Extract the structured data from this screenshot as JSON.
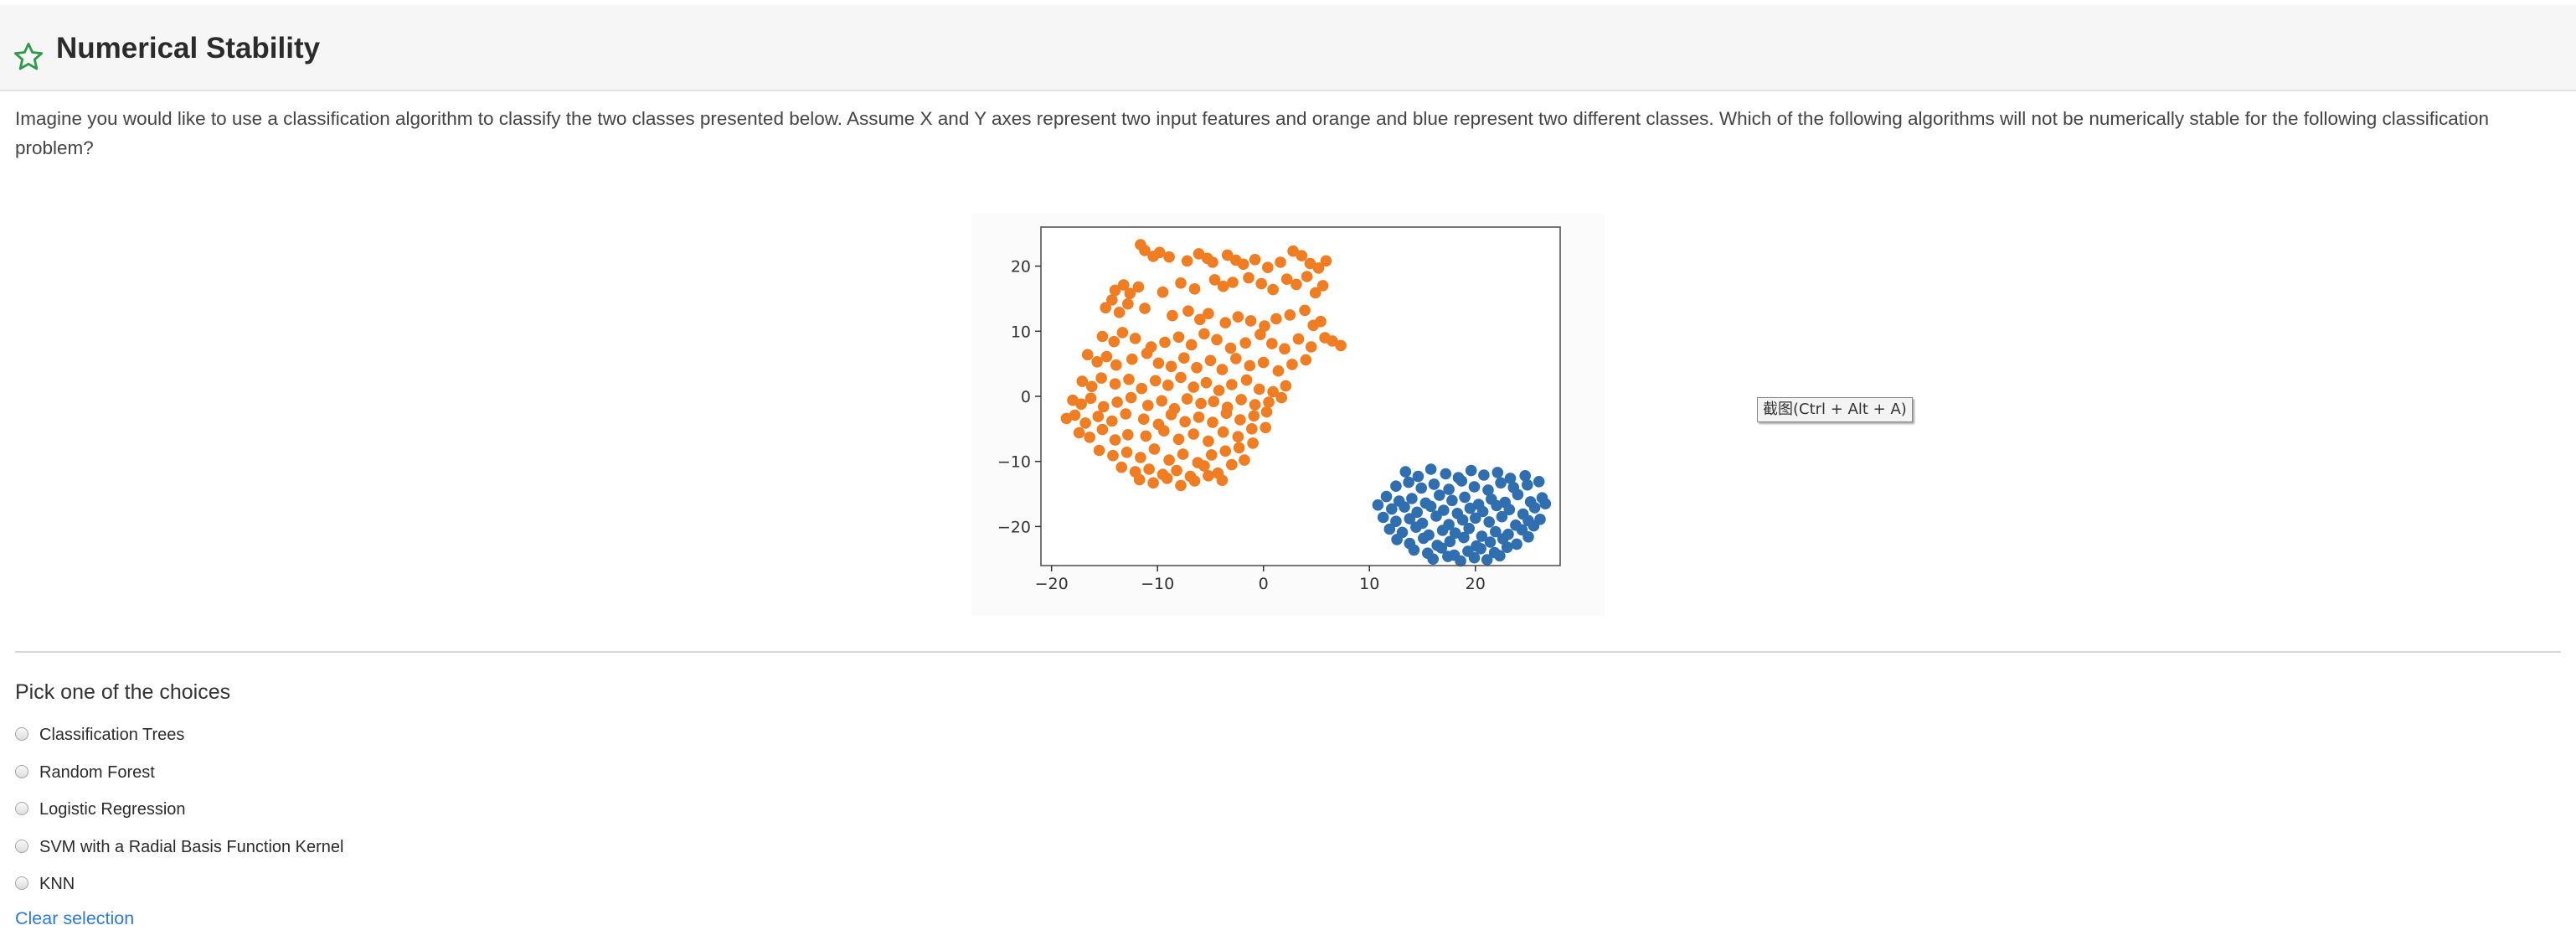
{
  "question": {
    "title": "Numerical Stability",
    "title_icon": "star-outline-icon",
    "text": "Imagine you would like to use a classification algorithm to classify the two classes presented below. Assume X and Y axes represent two input features and orange and blue represent two different classes. Which of the following algorithms will not be numerically stable for the following classification problem?"
  },
  "tooltip": "截图(Ctrl + Alt + A)",
  "choices_section": {
    "prompt": "Pick one of the choices",
    "options": [
      {
        "label": "Classification Trees",
        "selected": false
      },
      {
        "label": "Random Forest",
        "selected": false
      },
      {
        "label": "Logistic Regression",
        "selected": false
      },
      {
        "label": "SVM with a Radial Basis Function Kernel",
        "selected": false
      },
      {
        "label": "KNN",
        "selected": false
      }
    ],
    "clear_label": "Clear selection"
  },
  "colors": {
    "accent": "#2a7ae2",
    "star": "#2e9a4a",
    "class_orange": "#f07d22",
    "class_blue": "#2f6fb0"
  },
  "chart_data": {
    "type": "scatter",
    "title": "",
    "xlabel": "",
    "ylabel": "",
    "xlim": [
      -21,
      28
    ],
    "ylim": [
      -26,
      26
    ],
    "grid": false,
    "x_ticks": [
      -20,
      -10,
      0,
      10,
      20
    ],
    "y_ticks": [
      20,
      10,
      0,
      -10,
      -20
    ],
    "x_tick_labels": [
      "−20",
      "−10",
      "0",
      "10",
      "20"
    ],
    "y_tick_labels": [
      "20",
      "10",
      "0",
      "−10",
      "−20"
    ],
    "series": [
      {
        "color": "#f07d22",
        "x": [
          -11.6,
          -11.2,
          -10.4,
          -9.8,
          -8.9,
          -7.2,
          -6.1,
          -5.3,
          -4.8,
          -3.4,
          -2.6,
          -1.9,
          -0.8,
          0.4,
          1.6,
          2.8,
          3.6,
          4.4,
          5.2,
          5.9,
          -14.0,
          -13.2,
          -12.6,
          -11.8,
          -9.5,
          -7.8,
          -6.5,
          -4.6,
          -3.8,
          -2.9,
          -1.4,
          -0.2,
          0.9,
          2.2,
          3.1,
          4.1,
          4.9,
          5.6,
          -14.9,
          -14.3,
          -13.6,
          -12.8,
          -11.2,
          -8.6,
          -7.1,
          -6.0,
          -5.2,
          -3.6,
          -2.4,
          -1.2,
          0.1,
          1.2,
          2.5,
          3.9,
          4.7,
          5.4,
          -15.2,
          -14.1,
          -13.3,
          -12.1,
          -10.6,
          -9.3,
          -8.0,
          -6.8,
          -5.6,
          -4.4,
          -3.1,
          -1.7,
          -0.3,
          0.8,
          2.0,
          3.3,
          4.5,
          5.8,
          6.5,
          7.3,
          -16.6,
          -15.7,
          -14.8,
          -13.9,
          -12.4,
          -11.0,
          -9.9,
          -8.7,
          -7.5,
          -6.3,
          -5.0,
          -3.9,
          -2.6,
          -1.3,
          0.0,
          1.4,
          2.7,
          4.0,
          -17.1,
          -16.2,
          -15.3,
          -14.0,
          -12.7,
          -11.5,
          -10.2,
          -9.0,
          -7.8,
          -6.6,
          -5.4,
          -4.2,
          -3.0,
          -1.6,
          -0.4,
          0.9,
          2.1,
          -18.0,
          -17.2,
          -16.3,
          -15.1,
          -13.8,
          -12.5,
          -10.9,
          -9.6,
          -8.4,
          -7.2,
          -5.9,
          -4.7,
          -3.4,
          -2.1,
          -0.8,
          0.5,
          1.7,
          -18.6,
          -17.8,
          -16.8,
          -15.6,
          -14.3,
          -13.0,
          -11.3,
          -9.9,
          -8.7,
          -7.4,
          -6.1,
          -4.8,
          -3.5,
          -2.2,
          -0.9,
          0.3,
          -17.4,
          -16.4,
          -15.2,
          -14.0,
          -12.8,
          -11.1,
          -9.4,
          -8.0,
          -6.6,
          -5.2,
          -3.8,
          -2.4,
          -1.1,
          0.2,
          -15.5,
          -14.2,
          -12.9,
          -11.6,
          -10.3,
          -8.9,
          -7.6,
          -6.2,
          -4.9,
          -3.6,
          -2.3,
          -1.0,
          -13.4,
          -12.1,
          -10.8,
          -9.5,
          -8.2,
          -6.9,
          -5.6,
          -4.3,
          -3.0,
          -1.8,
          -11.7,
          -10.4,
          -9.1,
          -7.8,
          -6.5,
          -5.2,
          -3.9
        ],
        "y": [
          23.3,
          22.4,
          21.5,
          22.1,
          21.4,
          20.8,
          21.9,
          21.2,
          20.6,
          21.7,
          20.9,
          20.3,
          21.0,
          19.8,
          20.6,
          22.3,
          21.6,
          20.4,
          19.7,
          20.8,
          16.3,
          17.1,
          15.8,
          16.8,
          16.0,
          17.4,
          16.5,
          17.9,
          16.9,
          17.5,
          18.2,
          17.3,
          16.4,
          18.0,
          17.2,
          18.4,
          15.9,
          17.0,
          13.6,
          14.8,
          12.9,
          14.2,
          13.5,
          12.4,
          13.1,
          11.8,
          12.7,
          11.3,
          12.2,
          11.6,
          10.8,
          11.9,
          12.5,
          13.2,
          10.9,
          11.5,
          9.2,
          8.4,
          9.8,
          8.9,
          7.6,
          8.3,
          9.1,
          7.9,
          9.6,
          8.7,
          7.4,
          8.2,
          9.5,
          8.1,
          7.3,
          8.8,
          7.6,
          9.0,
          8.5,
          7.8,
          6.4,
          5.3,
          6.1,
          4.8,
          5.7,
          6.6,
          5.1,
          4.6,
          5.9,
          4.4,
          5.5,
          4.1,
          5.8,
          4.7,
          5.2,
          3.9,
          4.9,
          5.6,
          2.3,
          1.5,
          2.8,
          1.9,
          2.6,
          1.2,
          2.4,
          1.7,
          2.9,
          1.4,
          2.1,
          0.9,
          1.8,
          2.5,
          1.1,
          0.7,
          1.6,
          -0.6,
          -1.2,
          -0.3,
          -1.6,
          -0.9,
          -0.2,
          -1.4,
          -0.7,
          -1.9,
          -0.4,
          -1.1,
          -0.8,
          -1.7,
          -0.5,
          -1.3,
          -0.9,
          -0.2,
          -3.4,
          -2.9,
          -4.1,
          -3.1,
          -3.8,
          -2.7,
          -3.5,
          -4.3,
          -2.8,
          -3.9,
          -3.2,
          -4.0,
          -2.6,
          -3.6,
          -3.0,
          -2.4,
          -5.6,
          -6.3,
          -5.1,
          -6.7,
          -5.9,
          -6.1,
          -5.3,
          -6.6,
          -5.8,
          -6.9,
          -5.5,
          -6.2,
          -5.0,
          -4.8,
          -8.3,
          -9.1,
          -8.6,
          -9.4,
          -8.1,
          -9.8,
          -8.9,
          -10.2,
          -9.0,
          -8.4,
          -7.9,
          -7.2,
          -10.9,
          -11.6,
          -11.2,
          -12.0,
          -11.4,
          -12.3,
          -10.7,
          -11.8,
          -10.5,
          -9.8,
          -12.8,
          -13.3,
          -12.6,
          -13.7,
          -13.0,
          -12.2,
          -12.9
        ]
      },
      {
        "color": "#2f6fb0",
        "x": [
          13.4,
          14.6,
          15.8,
          17.2,
          18.4,
          19.6,
          20.8,
          22.1,
          23.3,
          24.7,
          12.5,
          13.7,
          14.9,
          16.1,
          17.5,
          18.7,
          19.9,
          21.2,
          22.4,
          23.6,
          24.9,
          26.0,
          11.6,
          12.8,
          14.0,
          15.3,
          16.6,
          17.8,
          19.0,
          20.3,
          21.5,
          22.8,
          24.0,
          25.2,
          26.3,
          10.8,
          12.1,
          13.3,
          14.5,
          15.8,
          17.0,
          18.3,
          19.5,
          20.7,
          22.0,
          23.2,
          24.5,
          25.6,
          26.6,
          11.3,
          12.5,
          13.8,
          15.0,
          16.3,
          17.5,
          18.8,
          20.0,
          21.3,
          22.5,
          23.8,
          25.0,
          26.1,
          11.9,
          13.1,
          14.4,
          15.6,
          16.9,
          18.1,
          19.4,
          20.6,
          21.9,
          23.1,
          24.4,
          25.5,
          12.6,
          13.8,
          15.1,
          16.4,
          17.6,
          18.9,
          20.1,
          21.4,
          22.6,
          23.9,
          25.0,
          14.2,
          15.5,
          16.8,
          18.0,
          19.3,
          20.5,
          21.8,
          23.0,
          16.0,
          17.4,
          18.6,
          19.9,
          21.1,
          22.3
        ],
        "y": [
          -11.6,
          -12.3,
          -11.2,
          -11.9,
          -12.5,
          -11.4,
          -12.1,
          -11.7,
          -12.6,
          -12.2,
          -13.8,
          -13.2,
          -14.1,
          -13.5,
          -14.3,
          -13.0,
          -13.9,
          -14.4,
          -13.3,
          -14.0,
          -13.6,
          -13.1,
          -15.4,
          -16.1,
          -15.7,
          -16.4,
          -15.2,
          -16.0,
          -15.5,
          -16.6,
          -15.8,
          -16.3,
          -15.1,
          -16.2,
          -15.6,
          -16.7,
          -17.3,
          -17.0,
          -17.8,
          -16.9,
          -17.5,
          -18.0,
          -17.2,
          -17.7,
          -16.8,
          -17.4,
          -18.1,
          -17.1,
          -16.5,
          -18.6,
          -19.2,
          -18.8,
          -19.5,
          -18.4,
          -19.7,
          -19.0,
          -18.7,
          -19.3,
          -18.5,
          -19.8,
          -19.1,
          -18.9,
          -20.4,
          -20.9,
          -20.1,
          -21.3,
          -20.6,
          -21.0,
          -20.3,
          -21.5,
          -20.8,
          -21.2,
          -20.5,
          -19.9,
          -22.0,
          -22.6,
          -21.8,
          -22.9,
          -22.3,
          -21.7,
          -23.0,
          -22.4,
          -21.9,
          -22.7,
          -21.6,
          -23.6,
          -24.1,
          -23.3,
          -24.4,
          -23.8,
          -23.4,
          -24.0,
          -23.2,
          -25.0,
          -24.6,
          -25.3,
          -24.8,
          -25.1,
          -24.5
        ]
      }
    ]
  }
}
